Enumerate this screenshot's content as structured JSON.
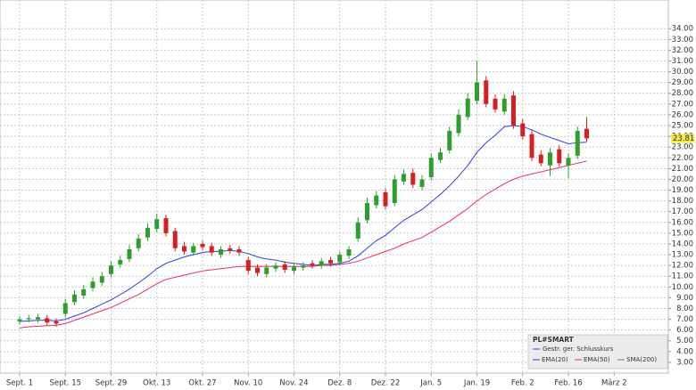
{
  "chart_data": {
    "type": "candlestick",
    "name": "PL#SMART",
    "categories": [
      "Sept. 1",
      null,
      null,
      null,
      null,
      "Sept. 15",
      null,
      null,
      null,
      null,
      "Sept. 29",
      null,
      null,
      null,
      null,
      "Okt. 13",
      null,
      null,
      null,
      null,
      "Okt. 27",
      null,
      null,
      null,
      null,
      "Nov. 10",
      null,
      null,
      null,
      null,
      "Nov. 24",
      null,
      null,
      null,
      null,
      "Dez. 8",
      null,
      null,
      null,
      null,
      "Dez. 22",
      null,
      null,
      null,
      null,
      "Jan. 5",
      null,
      null,
      null,
      null,
      "Jan. 19",
      null,
      null,
      null,
      null,
      "Feb. 2",
      null,
      null,
      null,
      null,
      "Feb. 16",
      null,
      null,
      null,
      null,
      "März 2"
    ],
    "open": [
      6.8,
      7.0,
      7.0,
      7.1,
      6.8,
      7.5,
      8.6,
      9.2,
      9.9,
      10.4,
      11.2,
      12.1,
      12.6,
      13.6,
      14.6,
      15.4,
      16.4,
      15.2,
      13.8,
      13.2,
      14.0,
      13.8,
      13.0,
      13.6,
      13.5,
      12.5,
      11.8,
      11.2,
      11.7,
      12.1,
      11.5,
      11.8,
      12.2,
      12.0,
      12.5,
      12.3,
      12.9,
      14.5,
      16.2,
      17.6,
      18.8,
      17.8,
      19.8,
      20.6,
      19.3,
      20.2,
      21.8,
      22.7,
      24.3,
      25.8,
      27.3,
      29.2,
      27.5,
      26.3,
      27.8,
      25.2,
      24.2,
      22.3,
      21.3,
      22.8,
      21.3,
      22.2,
      24.7,
      null,
      null,
      null
    ],
    "high": [
      7.3,
      7.4,
      7.5,
      7.4,
      7.1,
      8.9,
      9.7,
      10.2,
      10.9,
      11.4,
      12.4,
      12.9,
      13.9,
      14.9,
      15.9,
      16.8,
      16.7,
      15.5,
      14.2,
      14.1,
      14.3,
      14.1,
      13.8,
      13.9,
      13.8,
      12.8,
      12.1,
      12.1,
      12.3,
      12.4,
      12.2,
      12.3,
      12.5,
      12.7,
      12.8,
      13.3,
      13.8,
      16.5,
      18.3,
      18.9,
      19.2,
      20.4,
      20.9,
      21.0,
      20.4,
      22.4,
      22.9,
      24.9,
      26.5,
      28.0,
      31.0,
      29.6,
      27.9,
      27.9,
      28.2,
      25.6,
      24.6,
      22.7,
      22.9,
      23.2,
      22.4,
      24.9,
      25.8,
      null,
      null,
      null
    ],
    "low": [
      6.5,
      6.7,
      6.7,
      6.4,
      6.3,
      7.2,
      8.3,
      8.9,
      9.6,
      10.1,
      10.9,
      11.8,
      12.3,
      13.3,
      14.3,
      15.1,
      14.7,
      13.3,
      13.0,
      12.9,
      13.4,
      12.9,
      12.7,
      13.1,
      12.9,
      11.2,
      11.0,
      10.9,
      11.4,
      11.3,
      11.2,
      11.5,
      11.7,
      11.7,
      11.9,
      12.0,
      12.6,
      14.2,
      15.9,
      17.3,
      17.2,
      17.5,
      19.5,
      19.2,
      19.0,
      19.9,
      21.5,
      22.4,
      24.0,
      25.5,
      27.0,
      26.7,
      26.2,
      26.0,
      24.7,
      23.7,
      21.7,
      21.2,
      20.3,
      21.2,
      20.1,
      21.9,
      23.5,
      null,
      null,
      null
    ],
    "close": [
      7.0,
      7.1,
      7.2,
      6.7,
      6.6,
      8.5,
      9.3,
      9.8,
      10.5,
      11.0,
      12.0,
      12.5,
      13.5,
      14.5,
      15.5,
      16.3,
      15.0,
      13.6,
      13.3,
      13.8,
      13.7,
      13.2,
      13.5,
      13.4,
      13.2,
      11.5,
      11.3,
      11.8,
      12.0,
      11.6,
      11.9,
      12.0,
      12.0,
      12.4,
      12.2,
      13.0,
      13.5,
      16.0,
      17.8,
      18.5,
      17.5,
      20.0,
      20.5,
      19.5,
      20.0,
      22.0,
      22.5,
      24.5,
      26.0,
      27.5,
      29.0,
      27.0,
      26.5,
      27.5,
      25.0,
      24.0,
      22.0,
      21.5,
      22.5,
      21.5,
      22.0,
      24.5,
      23.81,
      null,
      null,
      null
    ],
    "up_color": "#2e9e2e",
    "down_color": "#d42020",
    "close_line_name": "Gestr. ger. Schlusskurs",
    "indicators": [
      {
        "name": "EMA(20)",
        "color": "#2a3fe0",
        "values": [
          6.8,
          6.85,
          6.9,
          6.9,
          6.85,
          7.0,
          7.3,
          7.6,
          8.0,
          8.4,
          8.8,
          9.3,
          9.8,
          10.4,
          11.0,
          11.7,
          12.2,
          12.5,
          12.8,
          13.0,
          13.2,
          13.3,
          13.3,
          13.4,
          13.3,
          13.1,
          12.8,
          12.6,
          12.5,
          12.3,
          12.2,
          12.1,
          12.0,
          12.1,
          12.1,
          12.2,
          12.4,
          12.9,
          13.6,
          14.3,
          14.8,
          15.5,
          16.2,
          16.7,
          17.2,
          17.9,
          18.6,
          19.4,
          20.3,
          21.3,
          22.5,
          23.4,
          24.1,
          24.9,
          25.0,
          24.9,
          24.6,
          24.2,
          23.9,
          23.6,
          23.3,
          23.4,
          23.45,
          null,
          null,
          null
        ]
      },
      {
        "name": "EMA(50)",
        "color": "#e8305a",
        "values": [
          6.2,
          6.3,
          6.35,
          6.4,
          6.45,
          6.6,
          6.9,
          7.2,
          7.5,
          7.8,
          8.1,
          8.5,
          8.9,
          9.3,
          9.8,
          10.3,
          10.7,
          10.9,
          11.1,
          11.3,
          11.5,
          11.6,
          11.7,
          11.8,
          11.9,
          11.9,
          11.9,
          11.9,
          11.9,
          11.9,
          11.9,
          11.9,
          11.9,
          12.0,
          12.0,
          12.1,
          12.2,
          12.4,
          12.7,
          13.0,
          13.3,
          13.6,
          14.0,
          14.3,
          14.6,
          15.1,
          15.6,
          16.1,
          16.7,
          17.3,
          18.0,
          18.6,
          19.1,
          19.6,
          20.0,
          20.3,
          20.5,
          20.7,
          20.9,
          21.1,
          21.3,
          21.5,
          21.7,
          null,
          null,
          null
        ]
      },
      {
        "name": "SMA(200)",
        "color": "#777777",
        "values": [
          null,
          null,
          null,
          null,
          null,
          null,
          null,
          null,
          null,
          null,
          null,
          null,
          null,
          null,
          null,
          null,
          null,
          null,
          null,
          null,
          null,
          null,
          null,
          null,
          null,
          null,
          null,
          null,
          null,
          null,
          null,
          null,
          null,
          null,
          null,
          null,
          null,
          null,
          null,
          null,
          null,
          null,
          null,
          null,
          null,
          null,
          null,
          null,
          null,
          null,
          null,
          null,
          null,
          null,
          null,
          null,
          null,
          null,
          null,
          null,
          null,
          null,
          null,
          null,
          null,
          null
        ]
      }
    ],
    "ylim": [
      2,
      36.5
    ],
    "yticks": [
      {
        "value": 3,
        "label": "3.00"
      },
      {
        "value": 4,
        "label": "4.00"
      },
      {
        "value": 5,
        "label": "5.00"
      },
      {
        "value": 6,
        "label": "6.00"
      },
      {
        "value": 7,
        "label": "7.00"
      },
      {
        "value": 8,
        "label": "8.00"
      },
      {
        "value": 9,
        "label": "9.00"
      },
      {
        "value": 10,
        "label": "10.00"
      },
      {
        "value": 11,
        "label": "11.00"
      },
      {
        "value": 12,
        "label": "12.00"
      },
      {
        "value": 13,
        "label": "13.00"
      },
      {
        "value": 14,
        "label": "14.00"
      },
      {
        "value": 15,
        "label": "15.00"
      },
      {
        "value": 16,
        "label": "16.00"
      },
      {
        "value": 17,
        "label": "17.00"
      },
      {
        "value": 18,
        "label": "18.00"
      },
      {
        "value": 19,
        "label": "19.00"
      },
      {
        "value": 20,
        "label": "20.00"
      },
      {
        "value": 21,
        "label": "21.00"
      },
      {
        "value": 22,
        "label": "22.00"
      },
      {
        "value": 23,
        "label": "23.00"
      },
      {
        "value": 24,
        "label": "24.00"
      },
      {
        "value": 25,
        "label": "25.00"
      },
      {
        "value": 26,
        "label": "26.00"
      },
      {
        "value": 27,
        "label": "27.00"
      },
      {
        "value": 28,
        "label": "28.00"
      },
      {
        "value": 29,
        "label": "29.00"
      },
      {
        "value": 30,
        "label": "30.00"
      },
      {
        "value": 31,
        "label": "31.00"
      },
      {
        "value": 32,
        "label": "32.00"
      },
      {
        "value": 33,
        "label": "33.00"
      },
      {
        "value": 34,
        "label": "34.00"
      }
    ],
    "grid": true
  }
}
